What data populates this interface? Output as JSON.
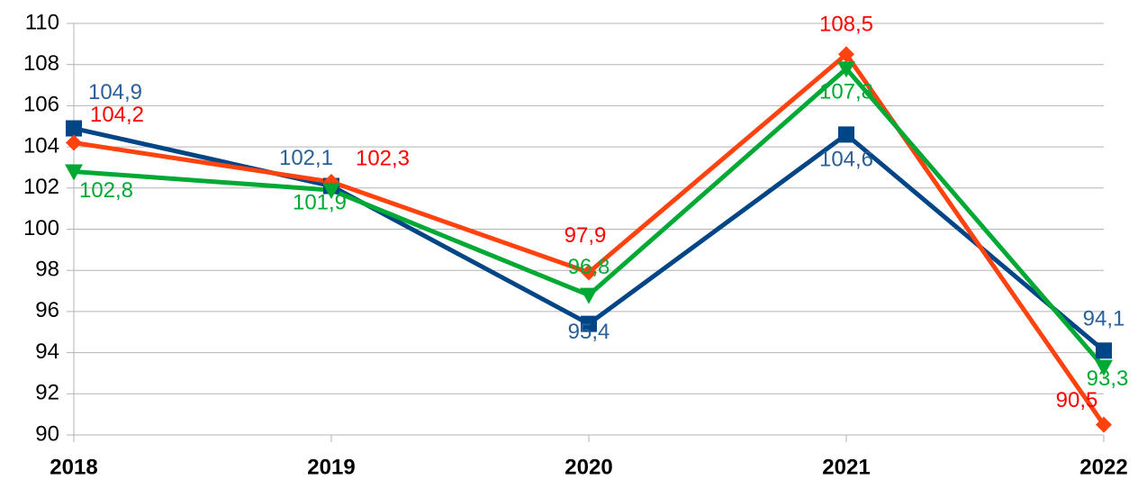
{
  "chart_data": {
    "type": "line",
    "categories": [
      "2018",
      "2019",
      "2020",
      "2021",
      "2022"
    ],
    "series": [
      {
        "color": "#004586",
        "label_color": "#2a6099",
        "marker": "square",
        "values": [
          104.9,
          102.1,
          95.4,
          104.6,
          94.1
        ],
        "value_labels": [
          "104,9",
          "102,1",
          "95,4",
          "104,6",
          "94,1"
        ]
      },
      {
        "color": "#ff420e",
        "label_color": "#ff0000",
        "marker": "diamond",
        "values": [
          104.2,
          102.3,
          97.9,
          108.5,
          90.5
        ],
        "value_labels": [
          "104,2",
          "102,3",
          "97,9",
          "108,5",
          "90,5"
        ]
      },
      {
        "color": "#00a933",
        "label_color": "#00a933",
        "marker": "triangle-down",
        "values": [
          102.8,
          101.9,
          96.8,
          107.8,
          93.3
        ],
        "value_labels": [
          "102,8",
          "101,9",
          "96,8",
          "107,8",
          "93,3"
        ]
      }
    ],
    "ylim": [
      90,
      110
    ],
    "yticks": [
      90,
      92,
      94,
      96,
      98,
      100,
      102,
      104,
      106,
      108,
      110
    ],
    "grid": true
  }
}
